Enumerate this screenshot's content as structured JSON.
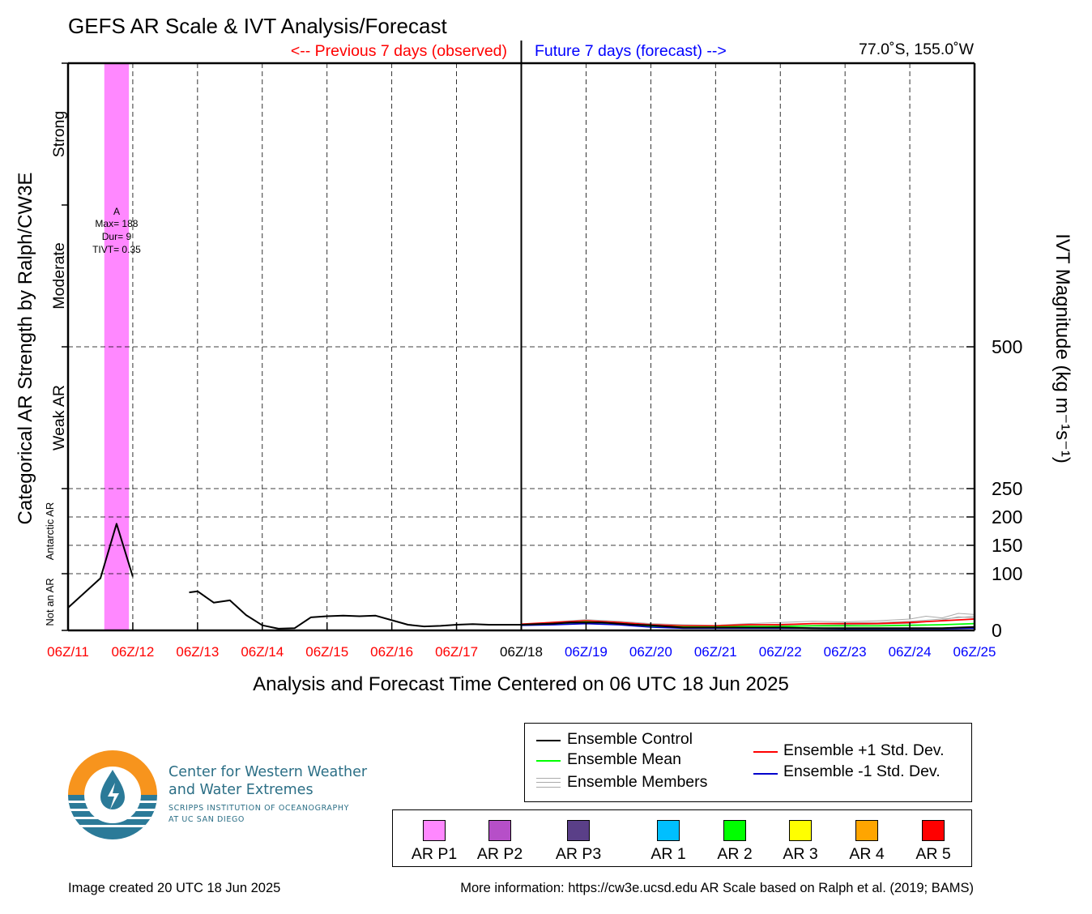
{
  "title": "GEFS AR Scale & IVT Analysis/Forecast",
  "header": {
    "previous": "<-- Previous 7 days (observed)",
    "future": "Future 7 days (forecast) -->",
    "location": "77.0˚S, 155.0˚W"
  },
  "chart_data": {
    "type": "line",
    "title": "GEFS AR Scale & IVT Analysis/Forecast",
    "xlabel": "Analysis and Forecast Time Centered on 06 UTC 18 Jun 2025",
    "ylabel_left": "Categorical AR Strength by Ralph/CW3E",
    "ylabel_right": "IVT Magnitude (kg m⁻¹s⁻¹)",
    "xlim_days": [
      0,
      14
    ],
    "ylim": [
      0,
      1000
    ],
    "y_ticks": [
      0,
      100,
      150,
      200,
      250,
      500
    ],
    "x_ticks": [
      {
        "label": "06Z/11",
        "color": "#ff0000"
      },
      {
        "label": "06Z/12",
        "color": "#ff0000"
      },
      {
        "label": "06Z/13",
        "color": "#ff0000"
      },
      {
        "label": "06Z/14",
        "color": "#ff0000"
      },
      {
        "label": "06Z/15",
        "color": "#ff0000"
      },
      {
        "label": "06Z/16",
        "color": "#ff0000"
      },
      {
        "label": "06Z/17",
        "color": "#ff0000"
      },
      {
        "label": "06Z/18",
        "color": "#000000"
      },
      {
        "label": "06Z/19",
        "color": "#0000ff"
      },
      {
        "label": "06Z/20",
        "color": "#0000ff"
      },
      {
        "label": "06Z/21",
        "color": "#0000ff"
      },
      {
        "label": "06Z/22",
        "color": "#0000ff"
      },
      {
        "label": "06Z/23",
        "color": "#0000ff"
      },
      {
        "label": "06Z/24",
        "color": "#0000ff"
      },
      {
        "label": "06Z/25",
        "color": "#0000ff"
      }
    ],
    "categories": [
      {
        "label": "Not an AR",
        "y_range": [
          0,
          100
        ],
        "size": "small"
      },
      {
        "label": "Antarctic AR",
        "y_range": [
          100,
          250
        ],
        "size": "small"
      },
      {
        "label": "Weak AR",
        "y_range": [
          250,
          500
        ],
        "size": "large"
      },
      {
        "label": "Moderate",
        "y_range": [
          500,
          750
        ],
        "size": "large"
      },
      {
        "label": "Strong",
        "y_range": [
          750,
          1000
        ],
        "size": "large"
      }
    ],
    "ar_event": {
      "x_start_day": 0.56,
      "x_end_day": 0.94,
      "color": "#ff88ff",
      "label": "A",
      "max": "Max= 188",
      "dur": "Dur= 9",
      "tivt": "TIVT= 0.35"
    },
    "series": [
      {
        "name": "Ensemble Control",
        "color": "#000000",
        "segments": [
          [
            [
              0.0,
              40
            ],
            [
              0.5,
              92
            ],
            [
              0.75,
              188
            ],
            [
              1.0,
              95
            ]
          ],
          [
            [
              1.87,
              67
            ],
            [
              2.0,
              69
            ],
            [
              2.25,
              49
            ],
            [
              2.5,
              53
            ],
            [
              2.75,
              27
            ],
            [
              3.0,
              9
            ],
            [
              3.25,
              3
            ],
            [
              3.5,
              4
            ],
            [
              3.75,
              23
            ],
            [
              4.0,
              25
            ],
            [
              4.25,
              26
            ],
            [
              4.5,
              25
            ],
            [
              4.75,
              26
            ],
            [
              5.0,
              18
            ],
            [
              5.25,
              10
            ],
            [
              5.5,
              7
            ],
            [
              5.75,
              8
            ],
            [
              6.0,
              10
            ],
            [
              6.25,
              11
            ],
            [
              6.5,
              10
            ],
            [
              6.75,
              10
            ],
            [
              7.0,
              10
            ],
            [
              7.25,
              11
            ],
            [
              7.5,
              12
            ],
            [
              7.75,
              14
            ],
            [
              8.0,
              14
            ],
            [
              8.25,
              14
            ],
            [
              8.5,
              12
            ],
            [
              8.75,
              10
            ],
            [
              9.0,
              9
            ],
            [
              9.25,
              7
            ],
            [
              9.5,
              5
            ],
            [
              9.75,
              5
            ],
            [
              10.0,
              5
            ],
            [
              10.5,
              5
            ],
            [
              11.0,
              5
            ],
            [
              11.5,
              4
            ],
            [
              12.0,
              4
            ],
            [
              12.5,
              4
            ],
            [
              13.0,
              4
            ],
            [
              13.5,
              4
            ],
            [
              14.0,
              6
            ]
          ]
        ]
      },
      {
        "name": "Ensemble Mean",
        "color": "#00ff00",
        "segments": [
          [
            [
              7.0,
              10
            ],
            [
              7.5,
              12
            ],
            [
              8.0,
              15
            ],
            [
              8.5,
              12
            ],
            [
              9.0,
              8
            ],
            [
              9.5,
              6
            ],
            [
              10.0,
              6
            ],
            [
              10.5,
              7
            ],
            [
              11.0,
              7
            ],
            [
              11.5,
              8
            ],
            [
              12.0,
              8
            ],
            [
              12.5,
              8
            ],
            [
              13.0,
              9
            ],
            [
              13.5,
              10
            ],
            [
              14.0,
              12
            ]
          ]
        ]
      },
      {
        "name": "Ensemble +1 Std. Dev.",
        "color": "#ff0000",
        "segments": [
          [
            [
              7.0,
              11
            ],
            [
              7.5,
              14
            ],
            [
              8.0,
              17
            ],
            [
              8.5,
              14
            ],
            [
              9.0,
              10
            ],
            [
              9.5,
              8
            ],
            [
              10.0,
              8
            ],
            [
              10.5,
              10
            ],
            [
              11.0,
              10
            ],
            [
              11.5,
              12
            ],
            [
              12.0,
              12
            ],
            [
              12.5,
              12
            ],
            [
              13.0,
              14
            ],
            [
              13.5,
              17
            ],
            [
              14.0,
              20
            ]
          ]
        ]
      },
      {
        "name": "Ensemble -1 Std. Dev.",
        "color": "#0000cc",
        "segments": [
          [
            [
              7.0,
              9
            ],
            [
              7.5,
              10
            ],
            [
              8.0,
              12
            ],
            [
              8.5,
              10
            ],
            [
              9.0,
              6
            ],
            [
              9.5,
              4
            ],
            [
              10.0,
              4
            ],
            [
              10.5,
              4
            ],
            [
              11.0,
              4
            ],
            [
              11.5,
              4
            ],
            [
              12.0,
              3
            ],
            [
              12.5,
              3
            ],
            [
              13.0,
              3
            ],
            [
              13.5,
              3
            ],
            [
              14.0,
              4
            ]
          ]
        ]
      },
      {
        "name": "Ensemble Members",
        "color": "#aaaaaa",
        "segments": [
          [
            [
              7.0,
              10
            ],
            [
              7.5,
              15
            ],
            [
              8.0,
              19
            ],
            [
              8.5,
              16
            ],
            [
              9.0,
              12
            ],
            [
              9.5,
              10
            ],
            [
              10.0,
              9
            ],
            [
              10.5,
              12
            ],
            [
              11.0,
              14
            ],
            [
              11.5,
              16
            ],
            [
              12.0,
              15
            ],
            [
              12.5,
              17
            ],
            [
              13.0,
              20
            ],
            [
              13.25,
              25
            ],
            [
              13.5,
              22
            ],
            [
              13.75,
              30
            ],
            [
              14.0,
              28
            ]
          ],
          [
            [
              7.0,
              10
            ],
            [
              7.5,
              11
            ],
            [
              8.0,
              13
            ],
            [
              8.5,
              11
            ],
            [
              9.0,
              7
            ],
            [
              9.5,
              5
            ],
            [
              10.0,
              6
            ],
            [
              10.5,
              6
            ],
            [
              11.0,
              8
            ],
            [
              11.5,
              9
            ],
            [
              12.0,
              10
            ],
            [
              12.5,
              11
            ],
            [
              13.0,
              12
            ],
            [
              13.5,
              18
            ],
            [
              13.75,
              24
            ],
            [
              14.0,
              22
            ]
          ],
          [
            [
              7.0,
              11
            ],
            [
              7.5,
              13
            ],
            [
              8.0,
              16
            ],
            [
              8.5,
              13
            ],
            [
              9.0,
              9
            ],
            [
              9.5,
              7
            ],
            [
              10.0,
              7
            ],
            [
              10.5,
              9
            ],
            [
              11.0,
              11
            ],
            [
              11.5,
              12
            ],
            [
              12.0,
              13
            ],
            [
              12.5,
              14
            ],
            [
              13.0,
              16
            ],
            [
              13.5,
              20
            ],
            [
              14.0,
              25
            ]
          ]
        ]
      }
    ]
  },
  "org": {
    "line1": "Center for Western Weather",
    "line2": "and Water Extremes",
    "line3": "SCRIPPS INSTITUTION OF OCEANOGRAPHY",
    "line4": "AT UC SAN DIEGO",
    "colors": {
      "orange": "#f7941d",
      "blue": "#2b7a98"
    }
  },
  "legend": {
    "control": "Ensemble Control",
    "mean": "Ensemble Mean",
    "members": "Ensemble Members",
    "plus": "Ensemble +1 Std. Dev.",
    "minus": "Ensemble -1 Std. Dev.",
    "colors": {
      "control": "#000000",
      "mean": "#00ff00",
      "members": "#aaaaaa",
      "plus": "#ff0000",
      "minus": "#0000cc"
    }
  },
  "ar_legend": [
    {
      "label": "AR P1",
      "color": "#ff88ff"
    },
    {
      "label": "AR P2",
      "color": "#b64fc8"
    },
    {
      "label": "AR P3",
      "color": "#5a3f88"
    },
    {
      "label": "AR 1",
      "color": "#00bfff"
    },
    {
      "label": "AR 2",
      "color": "#00ff00"
    },
    {
      "label": "AR 3",
      "color": "#ffff00"
    },
    {
      "label": "AR 4",
      "color": "#ffa500"
    },
    {
      "label": "AR 5",
      "color": "#ff0000"
    }
  ],
  "footer": {
    "created": "Image created 20 UTC 18 Jun 2025",
    "info": "More information: https://cw3e.ucsd.edu AR Scale based on Ralph et al. (2019; BAMS)"
  }
}
